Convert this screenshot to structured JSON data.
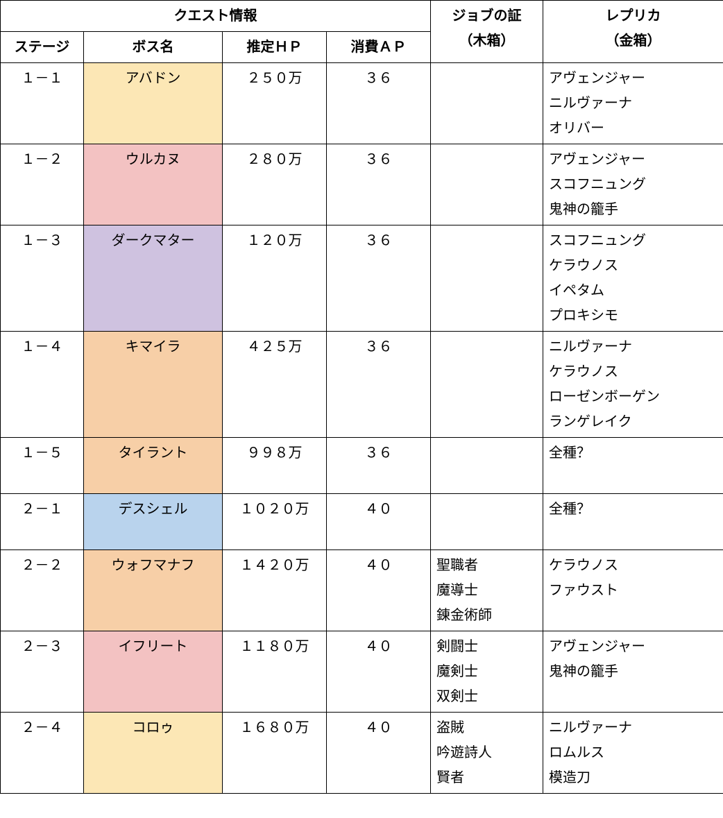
{
  "header": {
    "quest_info": "クエスト情報",
    "job_proof": "ジョブの証",
    "wood_box": "（木箱）",
    "replica": "レプリカ",
    "gold_box": "（金箱）",
    "stage": "ステージ",
    "boss": "ボス名",
    "hp": "推定ＨＰ",
    "ap": "消費ＡＰ"
  },
  "colors": {
    "yellow": "#fce7b5",
    "pink": "#f3c2c2",
    "purple": "#cfc2e0",
    "orange": "#f7cfa7",
    "blue": "#b9d3ed"
  },
  "rows": [
    {
      "stage": "１－１",
      "boss": "アバドン",
      "boss_bg": "#fce7b5",
      "hp": "２５０万",
      "ap": "３６",
      "job": [],
      "replica": [
        "アヴェンジャー",
        "ニルヴァーナ",
        "オリバー"
      ]
    },
    {
      "stage": "１－２",
      "boss": "ウルカヌ",
      "boss_bg": "#f3c2c2",
      "hp": "２８０万",
      "ap": "３６",
      "job": [],
      "replica": [
        "アヴェンジャー",
        "スコフニュング",
        "鬼神の籠手"
      ]
    },
    {
      "stage": "１－３",
      "boss": "ダークマター",
      "boss_bg": "#cfc2e0",
      "hp": "１２０万",
      "ap": "３６",
      "job": [],
      "replica": [
        "スコフニュング",
        "ケラウノス",
        "イペタム",
        "プロキシモ"
      ]
    },
    {
      "stage": "１－４",
      "boss": "キマイラ",
      "boss_bg": "#f7cfa7",
      "hp": "４２５万",
      "ap": "３６",
      "job": [],
      "replica": [
        "ニルヴァーナ",
        "ケラウノス",
        "ローゼンボーゲン",
        "ランゲレイク"
      ]
    },
    {
      "stage": "１－５",
      "boss": "タイラント",
      "boss_bg": "#f7cfa7",
      "hp": "９９８万",
      "ap": "３６",
      "job": [],
      "replica": [
        "全種？",
        " "
      ]
    },
    {
      "stage": "２－１",
      "boss": "デスシェル",
      "boss_bg": "#b9d3ed",
      "hp": "１０２０万",
      "ap": "４０",
      "job": [],
      "replica": [
        "全種？",
        " "
      ]
    },
    {
      "stage": "２－２",
      "boss": "ウォフマナフ",
      "boss_bg": "#f7cfa7",
      "hp": "１４２０万",
      "ap": "４０",
      "job": [
        "聖職者",
        "魔導士",
        "錬金術師"
      ],
      "replica": [
        "ケラウノス",
        "ファウスト"
      ]
    },
    {
      "stage": "２－３",
      "boss": "イフリート",
      "boss_bg": "#f3c2c2",
      "hp": "１１８０万",
      "ap": "４０",
      "job": [
        "剣闘士",
        "魔剣士",
        "双剣士"
      ],
      "replica": [
        "アヴェンジャー",
        "鬼神の籠手"
      ]
    },
    {
      "stage": "２－４",
      "boss": "コロゥ",
      "boss_bg": "#fce7b5",
      "hp": "１６８０万",
      "ap": "４０",
      "job": [
        "盗賊",
        "吟遊詩人",
        "賢者"
      ],
      "replica": [
        "ニルヴァーナ",
        "ロムルス",
        "模造刀"
      ]
    }
  ]
}
